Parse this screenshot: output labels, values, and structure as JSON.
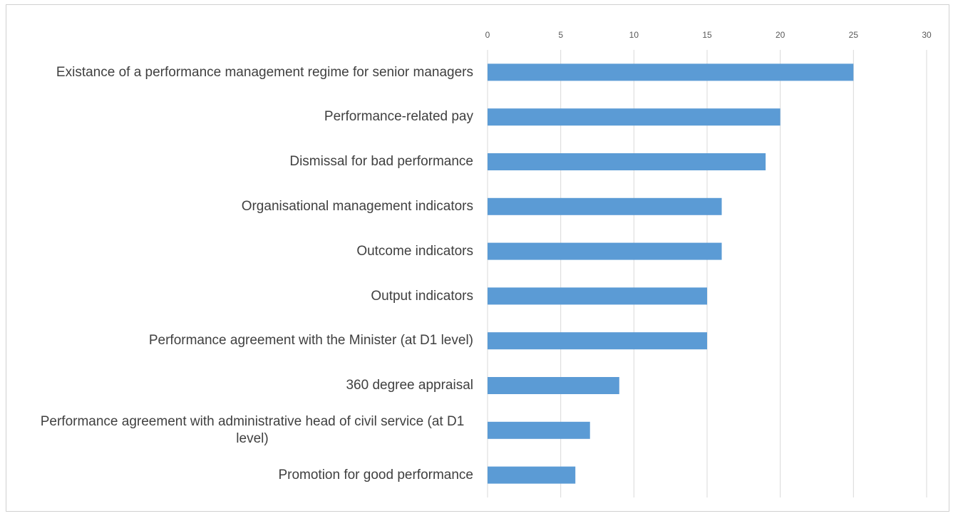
{
  "chart_data": {
    "type": "bar",
    "orientation": "horizontal",
    "categories": [
      "Existance of a performance management regime for senior managers",
      "Performance-related pay",
      "Dismissal for bad performance",
      "Organisational management indicators",
      "Outcome indicators",
      "Output indicators",
      "Performance agreement with the Minister (at D1 level)",
      "360 degree appraisal",
      "Performance agreement with administrative head of civil service (at D1 level)",
      "Promotion for good performance"
    ],
    "values": [
      25,
      20,
      19,
      16,
      16,
      15,
      15,
      9,
      7,
      6
    ],
    "color": "#5b9bd5",
    "xlim": [
      0,
      30
    ],
    "xticks": [
      0,
      5,
      10,
      15,
      20,
      25,
      30
    ],
    "grid": true
  }
}
